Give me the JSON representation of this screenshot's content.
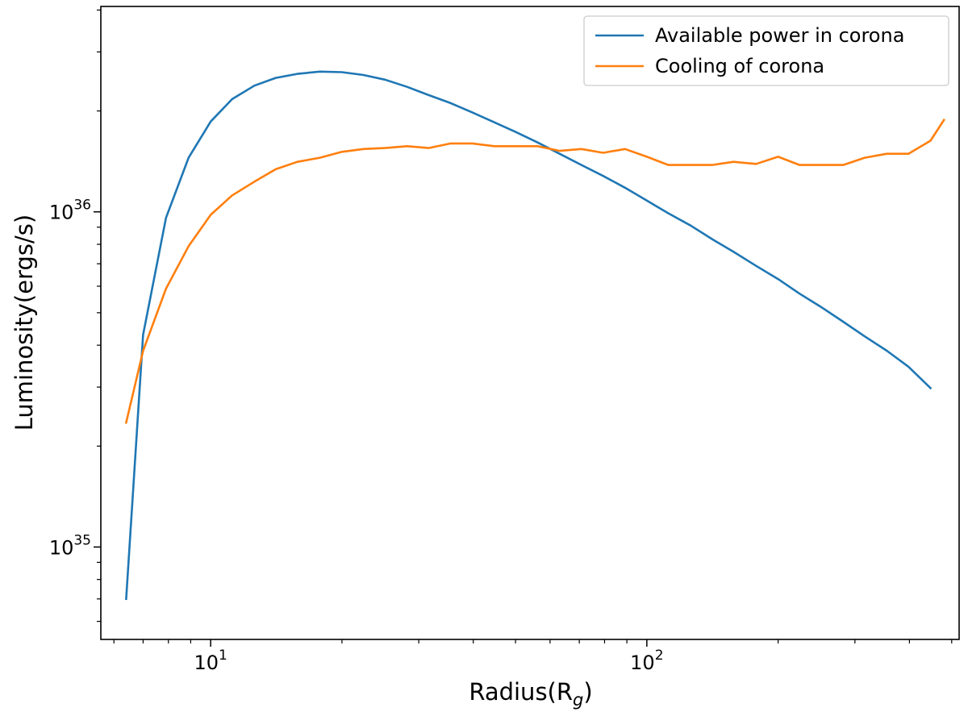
{
  "chart_data": {
    "type": "line",
    "title": "",
    "xlabel": "Radius(R",
    "xlabel_sub": "g",
    "xlabel_tail": ")",
    "ylabel": "Luminosity(ergs/s)",
    "xscale": "log",
    "yscale": "log",
    "xlim": [
      5.6,
      520
    ],
    "ylim": [
      5.3e+34,
      4.1e+36
    ],
    "x_ticks": [
      {
        "value": 10,
        "base": "10",
        "exp": "1"
      },
      {
        "value": 100,
        "base": "10",
        "exp": "2"
      }
    ],
    "y_ticks": [
      {
        "value": 1e+35,
        "base": "10",
        "exp": "35"
      },
      {
        "value": 1e+36,
        "base": "10",
        "exp": "36"
      }
    ],
    "grid": false,
    "legend_position": "top-right",
    "series": [
      {
        "name": "Available power in corona",
        "color": "#1f77b4",
        "x": [
          6.4,
          7.0,
          7.9,
          8.9,
          10.0,
          11.2,
          12.6,
          14.1,
          15.8,
          17.8,
          20.0,
          22.4,
          25.1,
          28.2,
          31.6,
          35.5,
          39.8,
          44.7,
          50.1,
          56.2,
          63.1,
          70.8,
          79.4,
          89.1,
          100,
          112,
          126,
          141,
          158,
          178,
          200,
          224,
          251,
          282,
          316,
          355,
          398,
          447
        ],
        "y": [
          7e+34,
          4.3e+35,
          9.6e+35,
          1.45e+36,
          1.86e+36,
          2.17e+36,
          2.38e+36,
          2.51e+36,
          2.58e+36,
          2.62e+36,
          2.61e+36,
          2.56e+36,
          2.48e+36,
          2.36e+36,
          2.23e+36,
          2.11e+36,
          1.98e+36,
          1.85e+36,
          1.73e+36,
          1.61e+36,
          1.49e+36,
          1.38e+36,
          1.28e+36,
          1.18e+36,
          1.08e+36,
          9.9e+35,
          9.1e+35,
          8.3e+35,
          7.6e+35,
          6.9e+35,
          6.3e+35,
          5.7e+35,
          5.2e+35,
          4.7e+35,
          4.25e+35,
          3.85e+35,
          3.45e+35,
          2.98e+35
        ]
      },
      {
        "name": "Cooling of corona",
        "color": "#ff7f0e",
        "x": [
          6.4,
          7.0,
          7.9,
          8.9,
          10.0,
          11.2,
          12.6,
          14.1,
          15.8,
          17.8,
          20.0,
          22.4,
          25.1,
          28.2,
          31.6,
          35.5,
          39.8,
          44.7,
          50.1,
          56.2,
          63.1,
          70.8,
          79.4,
          89.1,
          100,
          112,
          126,
          141,
          158,
          178,
          200,
          224,
          251,
          282,
          316,
          355,
          398,
          447,
          480
        ],
        "y": [
          2.35e+35,
          3.85e+35,
          5.9e+35,
          7.9e+35,
          9.8e+35,
          1.12e+36,
          1.23e+36,
          1.34e+36,
          1.41e+36,
          1.45e+36,
          1.51e+36,
          1.54e+36,
          1.55e+36,
          1.57e+36,
          1.55e+36,
          1.6e+36,
          1.6e+36,
          1.57e+36,
          1.57e+36,
          1.57e+36,
          1.52e+36,
          1.54e+36,
          1.5e+36,
          1.54e+36,
          1.46e+36,
          1.38e+36,
          1.38e+36,
          1.38e+36,
          1.41e+36,
          1.39e+36,
          1.46e+36,
          1.38e+36,
          1.38e+36,
          1.38e+36,
          1.45e+36,
          1.49e+36,
          1.49e+36,
          1.63e+36,
          1.88e+36
        ]
      }
    ]
  }
}
